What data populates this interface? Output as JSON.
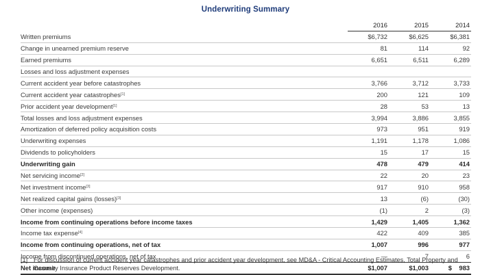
{
  "title": "Underwriting Summary",
  "columns": [
    "2016",
    "2015",
    "2014"
  ],
  "rows": [
    {
      "label": "Written premiums",
      "note": "",
      "indent": 1,
      "bold": false,
      "values": [
        "$6,732",
        "$6,625",
        "$6,381"
      ]
    },
    {
      "label": "Change in unearned premium reserve",
      "note": "",
      "indent": 1,
      "bold": false,
      "values": [
        "81",
        "114",
        "92"
      ]
    },
    {
      "label": "Earned premiums",
      "note": "",
      "indent": 2,
      "bold": false,
      "values": [
        "6,651",
        "6,511",
        "6,289"
      ]
    },
    {
      "label": "Losses and loss adjustment expenses",
      "note": "",
      "indent": 1,
      "bold": false,
      "values": [
        "",
        "",
        ""
      ]
    },
    {
      "label": "Current accident year before catastrophes",
      "note": "",
      "indent": 2,
      "bold": false,
      "values": [
        "3,766",
        "3,712",
        "3,733"
      ]
    },
    {
      "label": "Current accident year catastrophes",
      "note": "[1]",
      "indent": 2,
      "bold": false,
      "values": [
        "200",
        "121",
        "109"
      ]
    },
    {
      "label": "Prior accident year development",
      "note": "[1]",
      "indent": 2,
      "bold": false,
      "values": [
        "28",
        "53",
        "13"
      ]
    },
    {
      "label": "Total losses and loss adjustment expenses",
      "note": "",
      "indent": 1,
      "bold": false,
      "values": [
        "3,994",
        "3,886",
        "3,855"
      ]
    },
    {
      "label": "Amortization of deferred policy acquisition costs",
      "note": "",
      "indent": 1,
      "bold": false,
      "values": [
        "973",
        "951",
        "919"
      ]
    },
    {
      "label": "Underwriting expenses",
      "note": "",
      "indent": 1,
      "bold": false,
      "values": [
        "1,191",
        "1,178",
        "1,086"
      ]
    },
    {
      "label": "Dividends to policyholders",
      "note": "",
      "indent": 1,
      "bold": false,
      "values": [
        "15",
        "17",
        "15"
      ]
    },
    {
      "label": "Underwriting gain",
      "note": "",
      "indent": 2,
      "bold": true,
      "values": [
        "478",
        "479",
        "414"
      ]
    },
    {
      "label": "Net servicing income",
      "note": "[2]",
      "indent": 1,
      "bold": false,
      "values": [
        "22",
        "20",
        "23"
      ]
    },
    {
      "label": "Net investment income",
      "note": "[3]",
      "indent": 1,
      "bold": false,
      "values": [
        "917",
        "910",
        "958"
      ]
    },
    {
      "label": "Net realized capital gains (losses)",
      "note": "[3]",
      "indent": 1,
      "bold": false,
      "values": [
        "13",
        "(6)",
        "(30)"
      ]
    },
    {
      "label": "Other income (expenses)",
      "note": "",
      "indent": 1,
      "bold": false,
      "values": [
        "(1)",
        "2",
        "(3)"
      ]
    },
    {
      "label": "Income from continuing operations before income taxes",
      "note": "",
      "indent": 3,
      "bold": true,
      "values": [
        "1,429",
        "1,405",
        "1,362"
      ]
    },
    {
      "label": "Income tax expense",
      "note": "[4]",
      "indent": 1,
      "bold": false,
      "values": [
        "422",
        "409",
        "385"
      ]
    },
    {
      "label": "Income from continuing operations, net of tax",
      "note": "",
      "indent": 3,
      "bold": true,
      "values": [
        "1,007",
        "996",
        "977"
      ]
    },
    {
      "label": "Income from discontinued operations, net of tax",
      "note": "",
      "indent": 1,
      "bold": false,
      "values": [
        "—",
        "7",
        "6"
      ]
    },
    {
      "label": "Net income",
      "note": "",
      "indent": 1,
      "bold": true,
      "values": [
        "$1,007",
        "$1,003",
        "$    983"
      ]
    }
  ],
  "footnote": {
    "marker": "[1]",
    "text": "For discussion of current accident year catastrophes and prior accident year development, see MD&A - Critical Accounting Estimates, Total Property and Casualty Insurance Product Reserves Development."
  },
  "colors": {
    "title": "#1f3c7a",
    "text": "#3a3a3a",
    "rule": "#333333"
  }
}
